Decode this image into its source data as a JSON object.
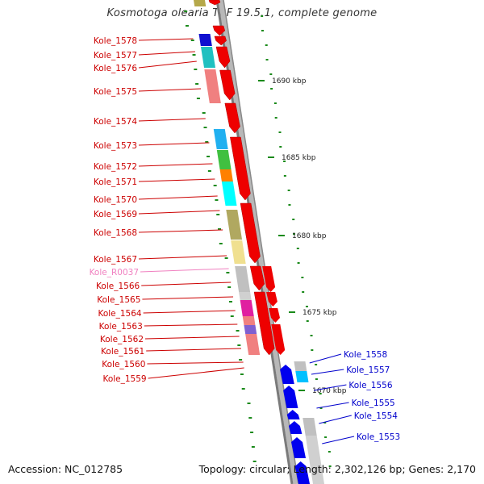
{
  "title": "Kosmotoga olearia TBF 19.5.1, complete genome",
  "footer": {
    "accession": "Accession: NC_012785",
    "summary": "Topology: circular; Length: 2,302,126 bp; Genes: 2,170"
  },
  "ticks": [
    {
      "label": "1690 kbp"
    },
    {
      "label": "1685 kbp"
    },
    {
      "label": "1680 kbp"
    },
    {
      "label": "1675 kbp"
    },
    {
      "label": "1670 kbp"
    }
  ],
  "left_genes": [
    {
      "label": "Kole_1578",
      "color": "#cc0000"
    },
    {
      "label": "Kole_1577",
      "color": "#cc0000"
    },
    {
      "label": "Kole_1576",
      "color": "#cc0000"
    },
    {
      "label": "Kole_1575",
      "color": "#cc0000"
    },
    {
      "label": "Kole_1574",
      "color": "#cc0000"
    },
    {
      "label": "Kole_1573",
      "color": "#cc0000"
    },
    {
      "label": "Kole_1572",
      "color": "#cc0000"
    },
    {
      "label": "Kole_1571",
      "color": "#cc0000"
    },
    {
      "label": "Kole_1570",
      "color": "#cc0000"
    },
    {
      "label": "Kole_1569",
      "color": "#cc0000"
    },
    {
      "label": "Kole_1568",
      "color": "#cc0000"
    },
    {
      "label": "Kole_1567",
      "color": "#cc0000"
    },
    {
      "label": "Kole_R0037",
      "color": "#f080c0"
    },
    {
      "label": "Kole_1566",
      "color": "#cc0000"
    },
    {
      "label": "Kole_1565",
      "color": "#cc0000"
    },
    {
      "label": "Kole_1564",
      "color": "#cc0000"
    },
    {
      "label": "Kole_1563",
      "color": "#cc0000"
    },
    {
      "label": "Kole_1562",
      "color": "#cc0000"
    },
    {
      "label": "Kole_1561",
      "color": "#cc0000"
    },
    {
      "label": "Kole_1560",
      "color": "#cc0000"
    },
    {
      "label": "Kole_1559",
      "color": "#cc0000"
    }
  ],
  "right_genes": [
    {
      "label": "Kole_1558",
      "color": "#0000cc"
    },
    {
      "label": "Kole_1557",
      "color": "#0000cc"
    },
    {
      "label": "Kole_1556",
      "color": "#0000cc"
    },
    {
      "label": "Kole_1555",
      "color": "#0000cc"
    },
    {
      "label": "Kole_1554",
      "color": "#0000cc"
    },
    {
      "label": "Kole_1553",
      "color": "#0000cc"
    }
  ],
  "colors": {
    "forward_strand": "#ee0000",
    "reverse_strand": "#0000ee",
    "backbone": "#999999",
    "gc_marker": "#1a8a1a"
  }
}
